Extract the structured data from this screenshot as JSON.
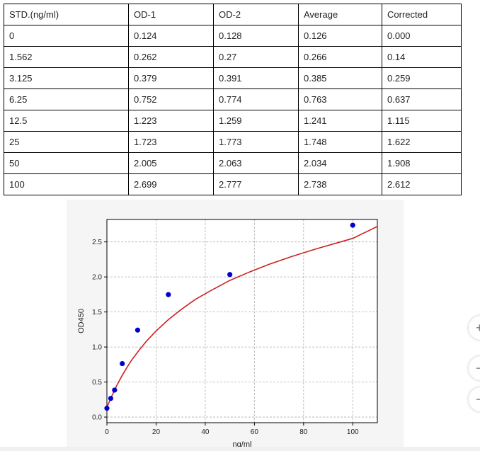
{
  "table": {
    "headers": [
      "STD.(ng/ml)",
      "OD-1",
      "OD-2",
      "Average",
      "Corrected"
    ],
    "rows": [
      [
        "0",
        "0.124",
        "0.128",
        "0.126",
        "0.000"
      ],
      [
        "1.562",
        "0.262",
        "0.27",
        "0.266",
        "0.14"
      ],
      [
        "3.125",
        "0.379",
        "0.391",
        "0.385",
        "0.259"
      ],
      [
        "6.25",
        "0.752",
        "0.774",
        "0.763",
        "0.637"
      ],
      [
        "12.5",
        "1.223",
        "1.259",
        "1.241",
        "1.115"
      ],
      [
        "25",
        "1.723",
        "1.773",
        "1.748",
        "1.622"
      ],
      [
        "50",
        "2.005",
        "2.063",
        "2.034",
        "1.908"
      ],
      [
        "100",
        "2.699",
        "2.777",
        "2.738",
        "2.612"
      ]
    ]
  },
  "chart_data": {
    "type": "scatter",
    "xlabel": "ng/ml",
    "ylabel": "OD450",
    "xlim": [
      0,
      110
    ],
    "ylim": [
      -0.08,
      2.82
    ],
    "xticks": [
      "0",
      "20",
      "40",
      "60",
      "80",
      "100"
    ],
    "yticks": [
      "0.0",
      "0.5",
      "1.0",
      "1.5",
      "2.0",
      "2.5"
    ],
    "grid": true,
    "series": [
      {
        "type": "scatter",
        "color": "#0000cc",
        "x": [
          0,
          1.562,
          3.125,
          6.25,
          12.5,
          25,
          50,
          100
        ],
        "y": [
          0.126,
          0.266,
          0.385,
          0.763,
          1.241,
          1.748,
          2.034,
          2.738
        ]
      },
      {
        "type": "line",
        "color": "#cc2222",
        "x": [
          0,
          1,
          2,
          4,
          6,
          8,
          10,
          13,
          16,
          20,
          25,
          30,
          36,
          42,
          50,
          58,
          66,
          75,
          85,
          95,
          100,
          110
        ],
        "y": [
          0.14,
          0.22,
          0.3,
          0.45,
          0.58,
          0.7,
          0.81,
          0.95,
          1.08,
          1.23,
          1.39,
          1.53,
          1.68,
          1.8,
          1.95,
          2.07,
          2.18,
          2.29,
          2.4,
          2.5,
          2.55,
          2.72
        ]
      }
    ]
  },
  "side_buttons": [
    "+",
    "−",
    "−"
  ]
}
